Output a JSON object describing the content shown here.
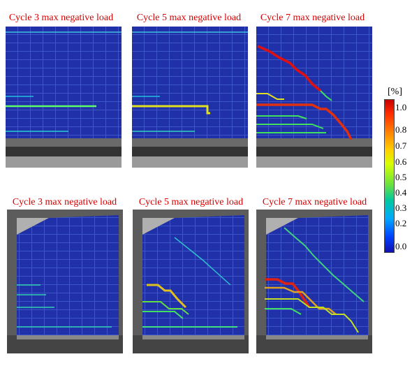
{
  "panels": {
    "row1": [
      {
        "title": "Cycle 3 max negative load"
      },
      {
        "title": "Cycle 5 max negative load"
      },
      {
        "title": "Cycle 7 max negative load"
      }
    ],
    "row2": [
      {
        "title": "Cycle 3 max negative load"
      },
      {
        "title": "Cycle 5 max negative load"
      },
      {
        "title": "Cycle 7 max negative load"
      }
    ]
  },
  "colorbar": {
    "unit": "[%]",
    "ticks": [
      "1.0",
      "0.8",
      "0.7",
      "0.6",
      "0.5",
      "0.4",
      "0.3",
      "0.2",
      "0.0"
    ],
    "colors": {
      "high": "#c80000",
      "mid": "#ffd000",
      "low": "#1010b0"
    }
  }
}
